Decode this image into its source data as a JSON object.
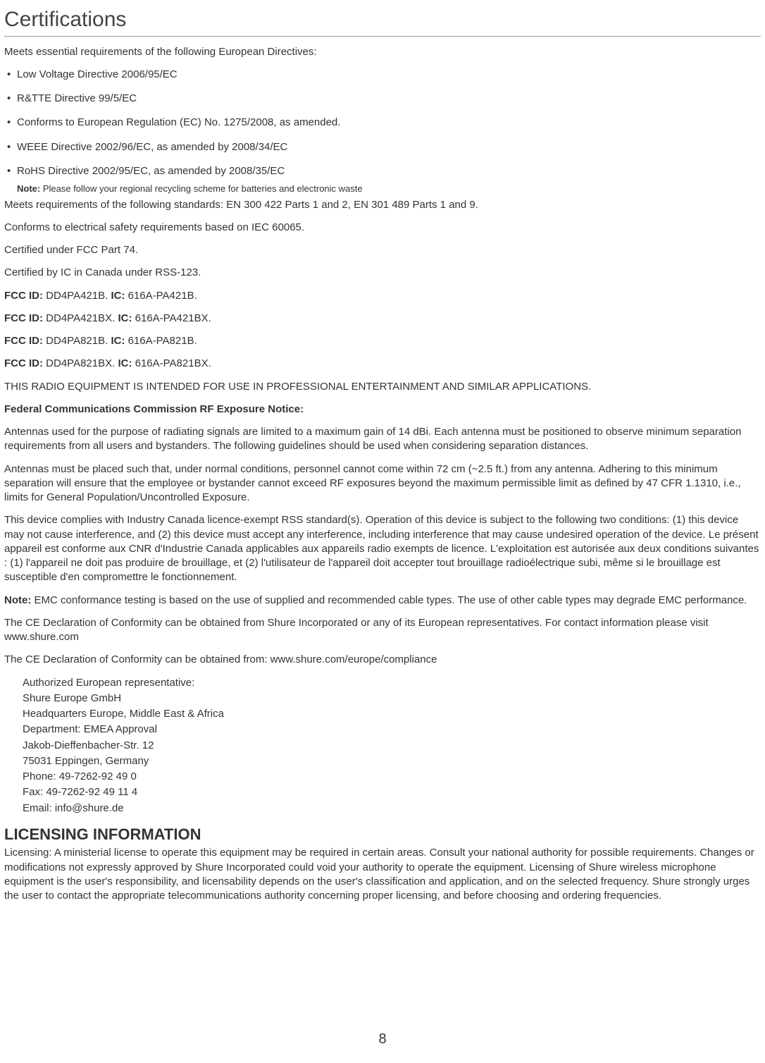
{
  "title": "Certifications",
  "intro": "Meets essential requirements of the following European Directives:",
  "directives": [
    "Low Voltage Directive 2006/95/EC",
    " R&TTE Directive 99/5/EC",
    " Conforms to European Regulation (EC) No. 1275/2008, as amended.",
    " WEEE Directive 2002/96/EC, as amended by 2008/34/EC",
    "RoHS Directive 2002/95/EC, as amended by 2008/35/EC"
  ],
  "note_label": "Note:",
  "note_text": " Please follow your regional recycling scheme for batteries and electronic waste",
  "standards": "Meets requirements of the following standards: EN 300 422 Parts 1 and 2, EN 301 489 Parts 1 and 9.",
  "iec": "Conforms to electrical safety requirements based on IEC 60065.",
  "fcc74": "Certified under FCC Part 74.",
  "ic_rss": "Certified by IC in Canada under RSS-123.",
  "ids": [
    {
      "fcc_label": "FCC ID:",
      "fcc": " DD4PA421B. ",
      "ic_label": "IC:",
      "ic": " 616A-PA421B."
    },
    {
      "fcc_label": "FCC ID:",
      "fcc": " DD4PA421BX. ",
      "ic_label": "IC:",
      "ic": " 616A-PA421BX."
    },
    {
      "fcc_label": "FCC ID:",
      "fcc": " DD4PA821B. ",
      "ic_label": "IC:",
      "ic": " 616A-PA821B."
    },
    {
      "fcc_label": "FCC ID:",
      "fcc": " DD4PA821BX. ",
      "ic_label": "IC:",
      "ic": " 616A-PA821BX."
    }
  ],
  "intended": "THIS RADIO EQUIPMENT IS INTENDED FOR USE IN PROFESSIONAL ENTERTAINMENT AND SIMILAR APPLICATIONS.",
  "fcc_notice_title": "Federal Communications Commission RF Exposure Notice:",
  "antennas1": "Antennas used for the purpose of radiating signals are limited to a maximum gain of 14 dBi. Each antenna must be positioned to observe minimum separation requirements from all users and bystanders. The following guidelines should be used when considering separation distances.",
  "antennas2": "Antennas must be placed such that, under normal conditions, personnel cannot come within 72 cm (~2.5 ft.) from any antenna. Adhering to this minimum separation will ensure that the employee or bystander cannot exceed RF exposures beyond the maximum permissible limit as defined by 47 CFR 1.1310, i.e., limits for General Population/Uncontrolled Exposure.",
  "canada": "This device complies with Industry Canada licence-exempt RSS standard(s). Operation of this device is subject to the following two conditions: (1) this device may not cause interference, and (2) this device must accept any interference, including interference that may cause undesired operation of the device. Le présent appareil est conforme aux CNR d'Industrie Canada applicables aux appareils radio exempts de licence. L'exploitation est autorisée aux deux conditions suivantes : (1) l'appareil ne doit pas produire de brouillage, et (2) l'utilisateur de l'appareil doit accepter tout brouillage radioélectrique subi, même si le brouillage est susceptible d'en compromettre le fonctionnement.",
  "emc_label": "Note:",
  "emc_text": " EMC conformance testing is based on the use of supplied and recommended cable types. The use of other cable types may degrade EMC performance.",
  "ce1": "The CE Declaration of Conformity can be obtained from Shure Incorporated or any of its European representatives. For contact information please visit www.shure.com",
  "ce2": "The CE Declaration of Conformity can be obtained from: www.shure.com/europe/compliance",
  "address": [
    "Authorized European representative:",
    "Shure Europe GmbH",
    "Headquarters Europe, Middle East & Africa",
    "Department: EMEA Approval",
    "Jakob-Dieffenbacher-Str. 12",
    "75031 Eppingen, Germany",
    "Phone: 49-7262-92 49 0",
    "Fax: 49-7262-92 49 11 4",
    "Email: info@shure.de"
  ],
  "licensing_title": "LICENSING INFORMATION",
  "licensing_body": "Licensing: A ministerial license to operate this equipment may be required in certain areas. Consult your national authority for possible requirements. Changes or modifications not expressly approved by Shure Incorporated could void your authority to operate the equipment. Licensing of Shure wireless microphone equipment is the user's responsibility, and licensability depends on the user's classification and application, and on the selected frequency. Shure strongly urges the user to contact the appropriate telecommunications authority concerning proper licensing, and before choosing and ordering frequencies.",
  "page_number": "8"
}
